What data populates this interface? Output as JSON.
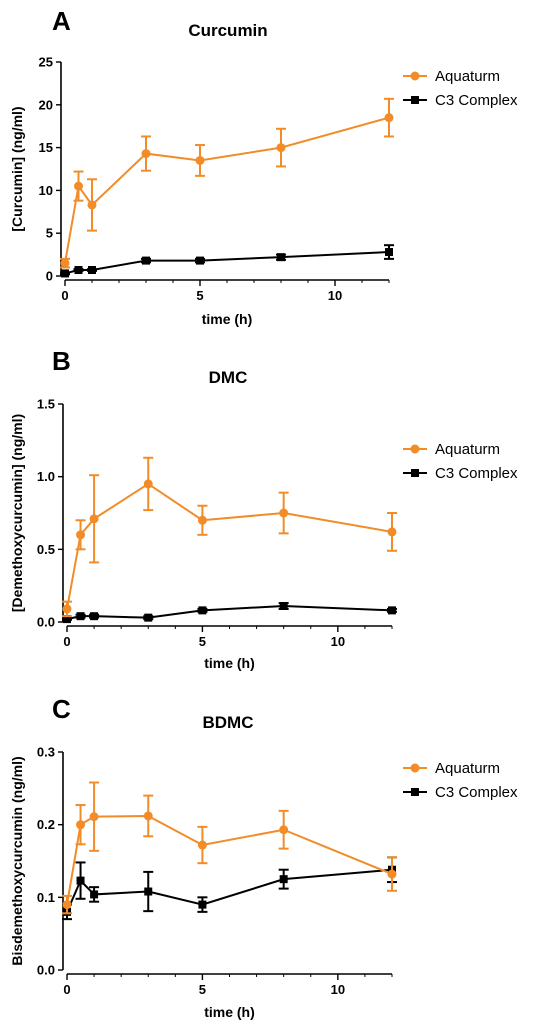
{
  "chart_data": [
    {
      "type": "line",
      "panel": "A",
      "title": "Curcumin",
      "xlabel": "time (h)",
      "ylabel": "[Curcumin] (ng/ml)",
      "xlim": [
        0,
        12
      ],
      "ylim": [
        0,
        25
      ],
      "xticks": [
        0,
        5,
        10
      ],
      "yticks": [
        0,
        5,
        10,
        15,
        20,
        25
      ],
      "legend_position": "top-right",
      "grid": false,
      "series": [
        {
          "name": "Aquaturm",
          "color": "#F28C28",
          "marker": "circle",
          "x": [
            0,
            0.5,
            1,
            3,
            5,
            8,
            12
          ],
          "y": [
            1.5,
            10.5,
            8.3,
            14.3,
            13.5,
            15.0,
            18.5
          ],
          "err": [
            0.5,
            1.7,
            3.0,
            2.0,
            1.8,
            2.2,
            2.2
          ]
        },
        {
          "name": "C3 Complex",
          "color": "#000000",
          "marker": "square",
          "x": [
            0,
            0.5,
            1,
            3,
            5,
            8,
            12
          ],
          "y": [
            0.3,
            0.7,
            0.7,
            1.8,
            1.8,
            2.2,
            2.8
          ],
          "err": [
            0.1,
            0.1,
            0.1,
            0.2,
            0.2,
            0.3,
            0.8
          ]
        }
      ]
    },
    {
      "type": "line",
      "panel": "B",
      "title": "DMC",
      "xlabel": "time (h)",
      "ylabel": "[Demethoxycurcumin] (ng/ml)",
      "xlim": [
        0,
        12
      ],
      "ylim": [
        0,
        1.5
      ],
      "xticks": [
        0,
        5,
        10
      ],
      "yticks": [
        "0.0",
        "0.5",
        "1.0",
        "1.5"
      ],
      "legend_position": "top-right",
      "grid": false,
      "series": [
        {
          "name": "Aquaturm",
          "color": "#F28C28",
          "marker": "circle",
          "x": [
            0,
            0.5,
            1,
            3,
            5,
            8,
            12
          ],
          "y": [
            0.09,
            0.6,
            0.71,
            0.95,
            0.7,
            0.75,
            0.62
          ],
          "err": [
            0.05,
            0.1,
            0.3,
            0.18,
            0.1,
            0.14,
            0.13
          ]
        },
        {
          "name": "C3 Complex",
          "color": "#000000",
          "marker": "square",
          "x": [
            0,
            0.5,
            1,
            3,
            5,
            8,
            12
          ],
          "y": [
            0.02,
            0.04,
            0.04,
            0.03,
            0.08,
            0.11,
            0.08
          ],
          "err": [
            0.005,
            0.01,
            0.01,
            0.01,
            0.01,
            0.02,
            0.01
          ]
        }
      ]
    },
    {
      "type": "line",
      "panel": "C",
      "title": "BDMC",
      "xlabel": "time (h)",
      "ylabel": "Bisdemethoxycurcumin (ng/ml)",
      "xlim": [
        0,
        12
      ],
      "ylim": [
        0,
        0.3
      ],
      "xticks": [
        0,
        5,
        10
      ],
      "yticks": [
        "0.0",
        "0.1",
        "0.2",
        "0.3"
      ],
      "legend_position": "top-right",
      "grid": false,
      "series": [
        {
          "name": "Aquaturm",
          "color": "#F28C28",
          "marker": "circle",
          "x": [
            0,
            0.5,
            1,
            3,
            5,
            8,
            12
          ],
          "y": [
            0.09,
            0.2,
            0.211,
            0.212,
            0.172,
            0.193,
            0.132
          ],
          "err": [
            0.012,
            0.027,
            0.047,
            0.028,
            0.025,
            0.026,
            0.023
          ]
        },
        {
          "name": "C3 Complex",
          "color": "#000000",
          "marker": "square",
          "x": [
            0,
            0.5,
            1,
            3,
            5,
            8,
            12
          ],
          "y": [
            0.08,
            0.123,
            0.104,
            0.108,
            0.09,
            0.125,
            0.138
          ],
          "err": [
            0.01,
            0.025,
            0.01,
            0.027,
            0.01,
            0.013,
            0.017
          ]
        }
      ]
    }
  ]
}
